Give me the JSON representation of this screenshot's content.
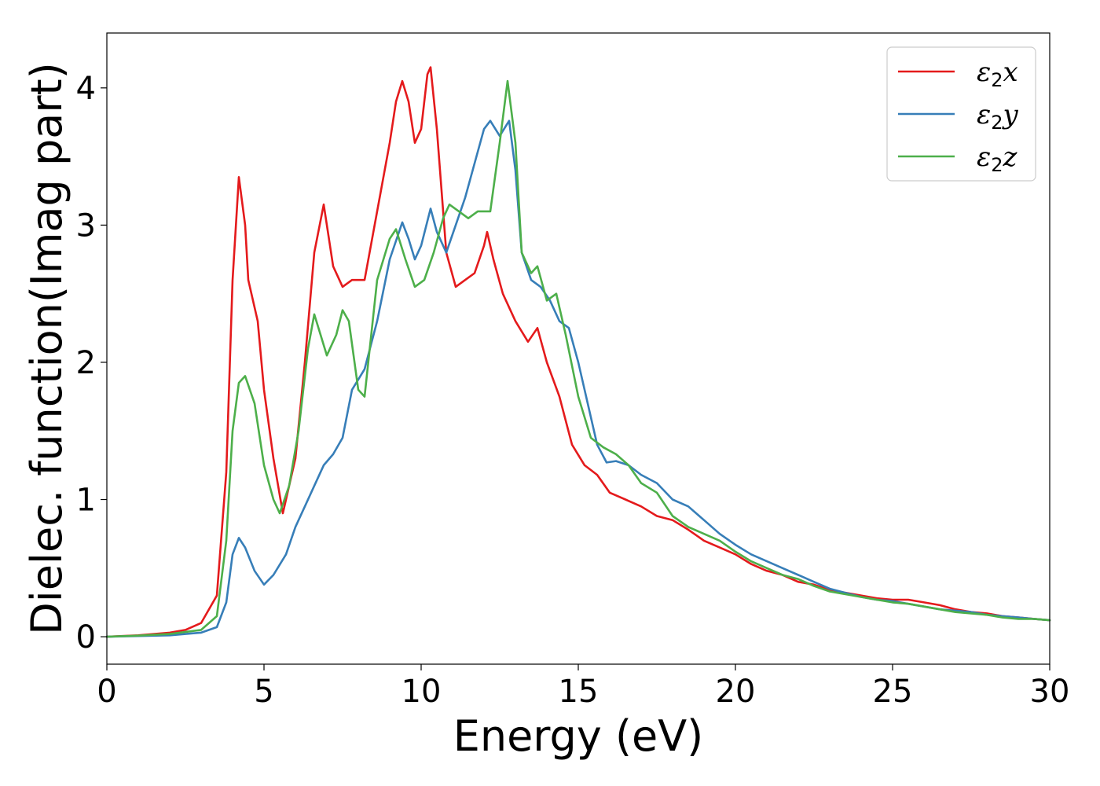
{
  "chart_data": {
    "type": "line",
    "title": "",
    "xlabel": "Energy (eV)",
    "ylabel": "Dielec. function(Imag part)",
    "xlim": [
      0,
      30
    ],
    "ylim": [
      -0.2,
      4.4
    ],
    "xticks": [
      0,
      5,
      10,
      15,
      20,
      25,
      30
    ],
    "yticks": [
      0,
      1,
      2,
      3,
      4
    ],
    "legend_position": "top-right",
    "grid": false,
    "series": [
      {
        "name": "ε2x",
        "label_base": "ε",
        "label_sub": "2",
        "label_var": "x",
        "color": "#e41a1c",
        "points": [
          [
            0,
            0
          ],
          [
            1,
            0.01
          ],
          [
            2,
            0.03
          ],
          [
            2.5,
            0.05
          ],
          [
            3,
            0.1
          ],
          [
            3.5,
            0.3
          ],
          [
            3.8,
            1.2
          ],
          [
            4.0,
            2.6
          ],
          [
            4.2,
            3.35
          ],
          [
            4.4,
            3.0
          ],
          [
            4.5,
            2.6
          ],
          [
            4.8,
            2.3
          ],
          [
            5.0,
            1.8
          ],
          [
            5.3,
            1.3
          ],
          [
            5.6,
            0.9
          ],
          [
            6.0,
            1.3
          ],
          [
            6.3,
            2.0
          ],
          [
            6.6,
            2.8
          ],
          [
            6.9,
            3.15
          ],
          [
            7.2,
            2.7
          ],
          [
            7.5,
            2.55
          ],
          [
            7.8,
            2.6
          ],
          [
            8.2,
            2.6
          ],
          [
            8.6,
            3.1
          ],
          [
            9.0,
            3.6
          ],
          [
            9.2,
            3.9
          ],
          [
            9.4,
            4.05
          ],
          [
            9.6,
            3.9
          ],
          [
            9.8,
            3.6
          ],
          [
            10.0,
            3.7
          ],
          [
            10.2,
            4.1
          ],
          [
            10.3,
            4.15
          ],
          [
            10.5,
            3.7
          ],
          [
            10.8,
            2.8
          ],
          [
            11.1,
            2.55
          ],
          [
            11.4,
            2.6
          ],
          [
            11.7,
            2.65
          ],
          [
            12.0,
            2.85
          ],
          [
            12.1,
            2.95
          ],
          [
            12.3,
            2.75
          ],
          [
            12.6,
            2.5
          ],
          [
            13.0,
            2.3
          ],
          [
            13.4,
            2.15
          ],
          [
            13.7,
            2.25
          ],
          [
            14.0,
            2.0
          ],
          [
            14.4,
            1.75
          ],
          [
            14.8,
            1.4
          ],
          [
            15.2,
            1.25
          ],
          [
            15.6,
            1.18
          ],
          [
            16.0,
            1.05
          ],
          [
            16.5,
            1.0
          ],
          [
            17.0,
            0.95
          ],
          [
            17.5,
            0.88
          ],
          [
            18.0,
            0.85
          ],
          [
            18.5,
            0.78
          ],
          [
            19.0,
            0.7
          ],
          [
            19.5,
            0.65
          ],
          [
            20.0,
            0.6
          ],
          [
            20.5,
            0.53
          ],
          [
            21.0,
            0.48
          ],
          [
            21.5,
            0.45
          ],
          [
            22.0,
            0.4
          ],
          [
            22.5,
            0.38
          ],
          [
            23.0,
            0.34
          ],
          [
            23.5,
            0.32
          ],
          [
            24.0,
            0.3
          ],
          [
            24.5,
            0.28
          ],
          [
            25.0,
            0.27
          ],
          [
            25.5,
            0.27
          ],
          [
            26.0,
            0.25
          ],
          [
            26.5,
            0.23
          ],
          [
            27.0,
            0.2
          ],
          [
            27.5,
            0.18
          ],
          [
            28.0,
            0.17
          ],
          [
            28.5,
            0.15
          ],
          [
            29.0,
            0.14
          ],
          [
            29.5,
            0.13
          ],
          [
            30.0,
            0.12
          ]
        ]
      },
      {
        "name": "ε2y",
        "label_base": "ε",
        "label_sub": "2",
        "label_var": "y",
        "color": "#377eb8",
        "points": [
          [
            0,
            0
          ],
          [
            1,
            0.005
          ],
          [
            2,
            0.01
          ],
          [
            3,
            0.03
          ],
          [
            3.5,
            0.07
          ],
          [
            3.8,
            0.25
          ],
          [
            4.0,
            0.6
          ],
          [
            4.2,
            0.72
          ],
          [
            4.4,
            0.65
          ],
          [
            4.7,
            0.48
          ],
          [
            5.0,
            0.38
          ],
          [
            5.3,
            0.45
          ],
          [
            5.7,
            0.6
          ],
          [
            6.0,
            0.8
          ],
          [
            6.3,
            0.95
          ],
          [
            6.6,
            1.1
          ],
          [
            6.9,
            1.25
          ],
          [
            7.2,
            1.33
          ],
          [
            7.5,
            1.45
          ],
          [
            7.8,
            1.8
          ],
          [
            8.2,
            1.95
          ],
          [
            8.6,
            2.3
          ],
          [
            9.0,
            2.75
          ],
          [
            9.4,
            3.02
          ],
          [
            9.6,
            2.9
          ],
          [
            9.8,
            2.75
          ],
          [
            10.0,
            2.85
          ],
          [
            10.3,
            3.12
          ],
          [
            10.5,
            2.95
          ],
          [
            10.8,
            2.8
          ],
          [
            11.1,
            3.0
          ],
          [
            11.4,
            3.2
          ],
          [
            11.7,
            3.45
          ],
          [
            12.0,
            3.7
          ],
          [
            12.2,
            3.76
          ],
          [
            12.5,
            3.65
          ],
          [
            12.8,
            3.76
          ],
          [
            13.0,
            3.4
          ],
          [
            13.2,
            2.8
          ],
          [
            13.5,
            2.6
          ],
          [
            13.8,
            2.55
          ],
          [
            14.1,
            2.45
          ],
          [
            14.4,
            2.3
          ],
          [
            14.7,
            2.25
          ],
          [
            15.0,
            2.0
          ],
          [
            15.3,
            1.7
          ],
          [
            15.6,
            1.4
          ],
          [
            15.9,
            1.27
          ],
          [
            16.2,
            1.28
          ],
          [
            16.6,
            1.25
          ],
          [
            17.0,
            1.18
          ],
          [
            17.5,
            1.12
          ],
          [
            18.0,
            1.0
          ],
          [
            18.5,
            0.95
          ],
          [
            19.0,
            0.85
          ],
          [
            19.5,
            0.75
          ],
          [
            20.0,
            0.67
          ],
          [
            20.5,
            0.6
          ],
          [
            21.0,
            0.55
          ],
          [
            21.5,
            0.5
          ],
          [
            22.0,
            0.45
          ],
          [
            22.5,
            0.4
          ],
          [
            23.0,
            0.35
          ],
          [
            23.5,
            0.32
          ],
          [
            24.0,
            0.29
          ],
          [
            24.5,
            0.27
          ],
          [
            25.0,
            0.26
          ],
          [
            25.5,
            0.24
          ],
          [
            26.0,
            0.22
          ],
          [
            26.5,
            0.2
          ],
          [
            27.0,
            0.19
          ],
          [
            27.5,
            0.18
          ],
          [
            28.0,
            0.16
          ],
          [
            28.5,
            0.15
          ],
          [
            29.0,
            0.14
          ],
          [
            29.5,
            0.13
          ],
          [
            30.0,
            0.12
          ]
        ]
      },
      {
        "name": "ε2z",
        "label_base": "ε",
        "label_sub": "2",
        "label_var": "z",
        "color": "#4daf4a",
        "points": [
          [
            0,
            0
          ],
          [
            1,
            0.008
          ],
          [
            2,
            0.02
          ],
          [
            3,
            0.05
          ],
          [
            3.5,
            0.15
          ],
          [
            3.8,
            0.7
          ],
          [
            4.0,
            1.5
          ],
          [
            4.2,
            1.85
          ],
          [
            4.4,
            1.9
          ],
          [
            4.7,
            1.7
          ],
          [
            5.0,
            1.25
          ],
          [
            5.3,
            1.0
          ],
          [
            5.5,
            0.9
          ],
          [
            5.8,
            1.1
          ],
          [
            6.1,
            1.5
          ],
          [
            6.4,
            2.1
          ],
          [
            6.6,
            2.35
          ],
          [
            6.8,
            2.2
          ],
          [
            7.0,
            2.05
          ],
          [
            7.3,
            2.2
          ],
          [
            7.5,
            2.38
          ],
          [
            7.7,
            2.3
          ],
          [
            8.0,
            1.8
          ],
          [
            8.2,
            1.75
          ],
          [
            8.6,
            2.6
          ],
          [
            9.0,
            2.9
          ],
          [
            9.2,
            2.97
          ],
          [
            9.5,
            2.75
          ],
          [
            9.8,
            2.55
          ],
          [
            10.1,
            2.6
          ],
          [
            10.4,
            2.8
          ],
          [
            10.7,
            3.05
          ],
          [
            10.9,
            3.15
          ],
          [
            11.2,
            3.1
          ],
          [
            11.5,
            3.05
          ],
          [
            11.8,
            3.1
          ],
          [
            12.2,
            3.1
          ],
          [
            12.5,
            3.6
          ],
          [
            12.75,
            4.05
          ],
          [
            13.0,
            3.6
          ],
          [
            13.2,
            2.8
          ],
          [
            13.5,
            2.65
          ],
          [
            13.7,
            2.7
          ],
          [
            14.0,
            2.45
          ],
          [
            14.3,
            2.5
          ],
          [
            14.6,
            2.2
          ],
          [
            15.0,
            1.75
          ],
          [
            15.4,
            1.45
          ],
          [
            15.8,
            1.38
          ],
          [
            16.2,
            1.33
          ],
          [
            16.6,
            1.25
          ],
          [
            17.0,
            1.12
          ],
          [
            17.5,
            1.05
          ],
          [
            18.0,
            0.88
          ],
          [
            18.5,
            0.8
          ],
          [
            19.0,
            0.75
          ],
          [
            19.5,
            0.7
          ],
          [
            20.0,
            0.62
          ],
          [
            20.5,
            0.55
          ],
          [
            21.0,
            0.5
          ],
          [
            21.5,
            0.45
          ],
          [
            22.0,
            0.42
          ],
          [
            22.5,
            0.37
          ],
          [
            23.0,
            0.33
          ],
          [
            23.5,
            0.31
          ],
          [
            24.0,
            0.29
          ],
          [
            24.5,
            0.27
          ],
          [
            25.0,
            0.25
          ],
          [
            25.5,
            0.24
          ],
          [
            26.0,
            0.22
          ],
          [
            26.5,
            0.2
          ],
          [
            27.0,
            0.18
          ],
          [
            27.5,
            0.17
          ],
          [
            28.0,
            0.16
          ],
          [
            28.5,
            0.14
          ],
          [
            29.0,
            0.13
          ],
          [
            29.5,
            0.13
          ],
          [
            30.0,
            0.12
          ]
        ]
      }
    ]
  }
}
